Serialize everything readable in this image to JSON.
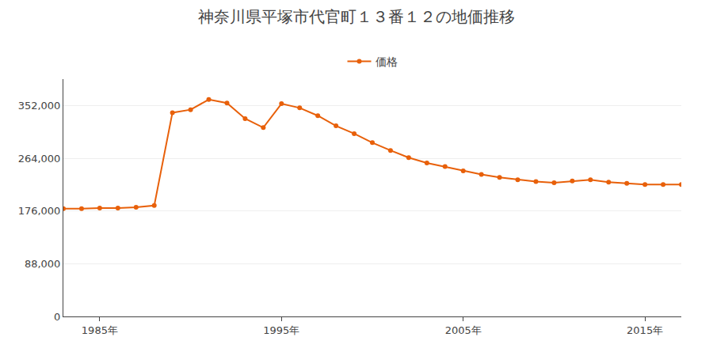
{
  "chart_data": {
    "type": "line",
    "title": "神奈川県平塚市代官町１３番１２の地価推移",
    "series": [
      {
        "name": "価格",
        "color": "#e8600a",
        "marker": "circle",
        "line_style": "solid",
        "values": [
          180000,
          180000,
          181000,
          181000,
          182000,
          185000,
          340000,
          345000,
          362000,
          356000,
          330000,
          315000,
          355000,
          348000,
          335000,
          318000,
          305000,
          290000,
          277000,
          265000,
          256000,
          250000,
          243000,
          237000,
          232000,
          228000,
          225000,
          223000,
          226000,
          228000,
          224000,
          222000,
          220000,
          220000,
          220000
        ]
      }
    ],
    "x": [
      1983,
      1984,
      1985,
      1986,
      1987,
      1988,
      1989,
      1990,
      1991,
      1992,
      1993,
      1994,
      1995,
      1996,
      1997,
      1998,
      1999,
      2000,
      2001,
      2002,
      2003,
      2004,
      2005,
      2006,
      2007,
      2008,
      2009,
      2010,
      2011,
      2012,
      2013,
      2014,
      2015,
      2016,
      2017
    ],
    "xlim": [
      1983,
      2017
    ],
    "xticks": [
      {
        "value": 1985,
        "label": "1985年"
      },
      {
        "value": 1995,
        "label": "1995年"
      },
      {
        "value": 2005,
        "label": "2005年"
      },
      {
        "value": 2015,
        "label": "2015年"
      }
    ],
    "ylim": [
      0,
      396000
    ],
    "yticks": [
      0,
      {
        "value": 88000,
        "label": "88,000"
      },
      {
        "value": 176000,
        "label": "176,000"
      },
      {
        "value": 264000,
        "label": "264,000"
      },
      {
        "value": 352000,
        "label": "352,000"
      }
    ],
    "grid": "y",
    "legend": "top"
  }
}
